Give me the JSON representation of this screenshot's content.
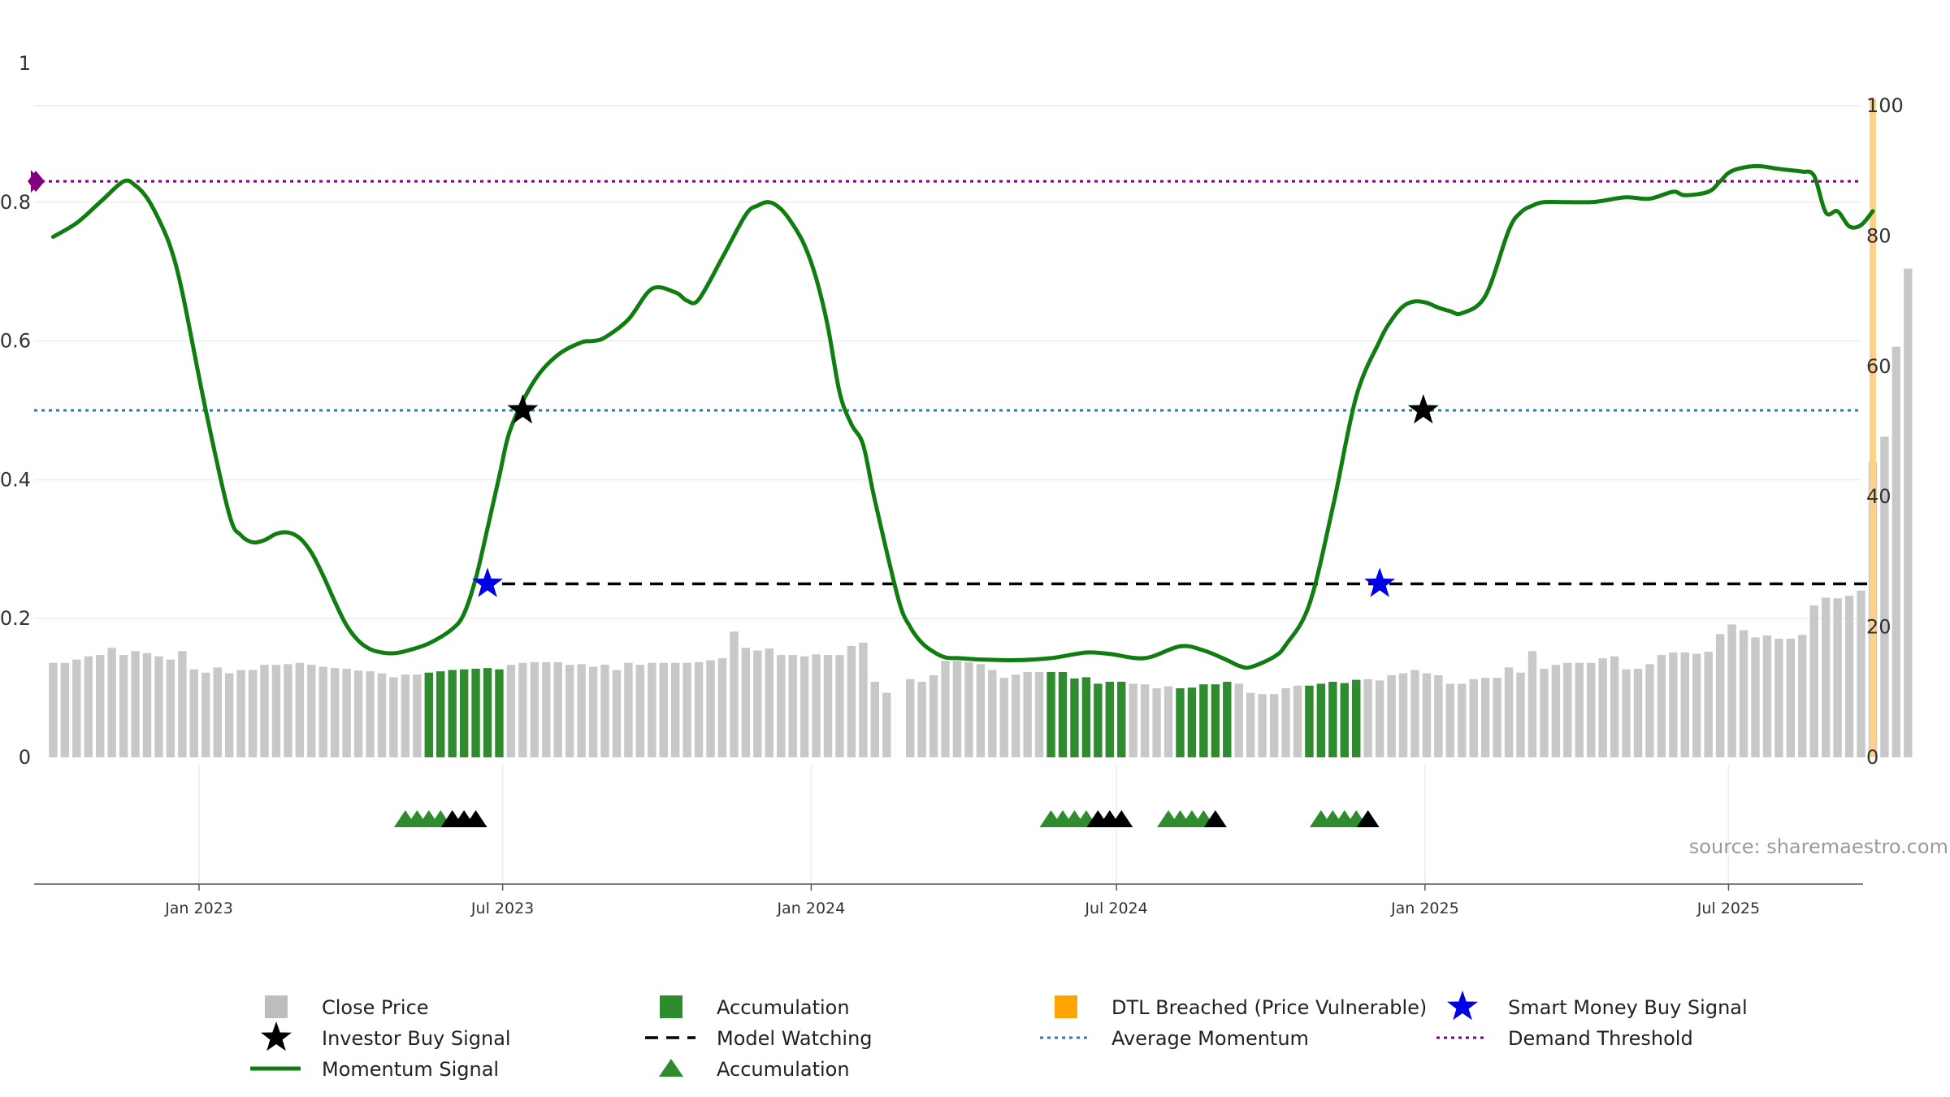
{
  "chart_data": {
    "type": "bar",
    "source": "source: sharemaestro.com",
    "left_axis": {
      "ylim": [
        0,
        1
      ],
      "ticks": [
        0,
        0.2,
        0.4,
        0.6,
        0.8,
        1
      ],
      "tick_labels": [
        "0",
        "0.2",
        "0.4",
        "0.6",
        "0.8",
        "1"
      ]
    },
    "right_axis": {
      "ylim": [
        0,
        100
      ],
      "ticks": [
        0,
        20,
        40,
        60,
        80,
        100
      ],
      "tick_labels": [
        "0",
        "20",
        "40",
        "60",
        "80",
        "100"
      ]
    },
    "x_axis": {
      "tick_dates": [
        "2023-01-01",
        "2023-07-01",
        "2024-01-01",
        "2024-07-01",
        "2025-01-01",
        "2025-07-01"
      ],
      "tick_labels": [
        "Jan 2023",
        "Jul 2023",
        "Jan 2024",
        "Jul 2024",
        "Jan 2025",
        "Jul 2025"
      ]
    },
    "grid": true,
    "colors": {
      "close_price": "#c8c8c8",
      "accumulation": "#2e8b2e",
      "momentum": "#0f7d0f",
      "average_momentum": "#2a7aa8",
      "demand_threshold": "#800080",
      "model_watching": "#000000",
      "smart_money": "#0000e6",
      "investor_buy": "#000000",
      "dtl_breached": "#ffa500"
    },
    "close_price_series": {
      "name": "Close Price",
      "start_date": "2022-10-06",
      "interval_days": 7,
      "values": [
        14.5,
        14.5,
        15,
        15.5,
        15.7,
        16.8,
        15.7,
        16.3,
        16,
        15.5,
        15,
        16.3,
        13.5,
        13,
        13.8,
        12.9,
        13.4,
        13.4,
        14.2,
        14.2,
        14.3,
        14.5,
        14.2,
        13.9,
        13.7,
        13.6,
        13.3,
        13.2,
        12.9,
        12.3,
        12.7,
        12.7,
        13,
        13.2,
        13.4,
        13.5,
        13.6,
        13.7,
        13.5,
        14.2,
        14.5,
        14.6,
        14.6,
        14.6,
        14.2,
        14.3,
        13.9,
        14.2,
        13.4,
        14.5,
        14.2,
        14.5,
        14.5,
        14.5,
        14.5,
        14.6,
        14.9,
        15.2,
        19.3,
        16.8,
        16.4,
        16.7,
        15.7,
        15.7,
        15.5,
        15.8,
        15.7,
        15.7,
        17.1,
        17.6,
        11.6,
        9.9,
        null,
        12,
        11.6,
        12.6,
        14.8,
        14.8,
        14.6,
        14.3,
        13.4,
        12.2,
        12.7,
        13.1,
        13.1,
        13.1,
        13.1,
        12.1,
        12.3,
        11.3,
        11.6,
        11.6,
        11.3,
        11.2,
        10.6,
        10.9,
        10.6,
        10.7,
        11.2,
        11.2,
        11.6,
        11.3,
        9.9,
        9.7,
        9.7,
        10.6,
        11,
        11,
        11.3,
        11.6,
        11.4,
        11.9,
        12,
        11.8,
        12.6,
        12.9,
        13.4,
        12.9,
        12.6,
        11.3,
        11.3,
        12,
        12.2,
        12.2,
        13.8,
        13,
        16.3,
        13.6,
        14.2,
        14.5,
        14.5,
        14.5,
        15.2,
        15.5,
        13.5,
        13.6,
        14.3,
        15.7,
        16.1,
        16.1,
        15.9,
        16.2,
        18.9,
        20.4,
        19.5,
        18.4,
        18.7,
        18.2,
        18.2,
        18.8,
        23.3,
        24.5,
        24.4,
        24.8,
        25.6,
        45.3,
        49.2,
        63,
        75
      ]
    },
    "accumulation_ranges": [
      [
        32,
        38
      ],
      [
        85,
        91
      ],
      [
        96,
        100
      ],
      [
        107,
        111
      ]
    ],
    "momentum_series": {
      "name": "Momentum Signal",
      "dates": [
        "2022-10-06",
        "2022-10-20",
        "2022-11-03",
        "2022-11-17",
        "2022-11-24",
        "2022-12-01",
        "2022-12-08",
        "2022-12-15",
        "2022-12-22",
        "2023-01-05",
        "2023-01-19",
        "2023-01-26",
        "2023-02-02",
        "2023-02-09",
        "2023-02-16",
        "2023-02-23",
        "2023-03-02",
        "2023-03-09",
        "2023-03-16",
        "2023-03-23",
        "2023-03-30",
        "2023-04-06",
        "2023-04-13",
        "2023-04-20",
        "2023-04-27",
        "2023-05-04",
        "2023-05-18",
        "2023-06-01",
        "2023-06-08",
        "2023-06-15",
        "2023-06-22",
        "2023-06-29",
        "2023-07-06",
        "2023-07-20",
        "2023-08-03",
        "2023-08-17",
        "2023-08-24",
        "2023-08-31",
        "2023-09-14",
        "2023-09-28",
        "2023-10-12",
        "2023-10-19",
        "2023-10-26",
        "2023-11-09",
        "2023-11-23",
        "2023-11-30",
        "2023-12-07",
        "2023-12-14",
        "2023-12-21",
        "2023-12-28",
        "2024-01-04",
        "2024-01-11",
        "2024-01-18",
        "2024-01-25",
        "2024-02-01",
        "2024-02-08",
        "2024-02-22",
        "2024-02-29",
        "2024-03-07",
        "2024-03-14",
        "2024-03-21",
        "2024-03-28",
        "2024-04-04",
        "2024-04-11",
        "2024-05-02",
        "2024-05-23",
        "2024-06-13",
        "2024-06-27",
        "2024-07-18",
        "2024-08-08",
        "2024-08-22",
        "2024-09-05",
        "2024-09-12",
        "2024-09-19",
        "2024-10-03",
        "2024-10-10",
        "2024-10-24",
        "2024-11-07",
        "2024-11-21",
        "2024-12-05",
        "2024-12-12",
        "2024-12-19",
        "2024-12-26",
        "2025-01-02",
        "2025-01-09",
        "2025-01-16",
        "2025-01-23",
        "2025-02-06",
        "2025-02-20",
        "2025-02-27",
        "2025-03-06",
        "2025-03-13",
        "2025-03-27",
        "2025-04-10",
        "2025-04-17",
        "2025-05-01",
        "2025-05-15",
        "2025-05-29",
        "2025-06-05",
        "2025-06-19",
        "2025-06-26",
        "2025-07-03",
        "2025-07-17",
        "2025-07-31",
        "2025-08-07",
        "2025-08-14",
        "2025-08-21",
        "2025-08-28",
        "2025-09-04",
        "2025-09-11",
        "2025-09-18",
        "2025-09-25"
      ],
      "values": [
        0.75,
        0.77,
        0.8,
        0.83,
        0.824,
        0.806,
        0.775,
        0.735,
        0.67,
        0.5,
        0.35,
        0.32,
        0.31,
        0.313,
        0.322,
        0.324,
        0.316,
        0.295,
        0.262,
        0.224,
        0.19,
        0.168,
        0.156,
        0.151,
        0.15,
        0.153,
        0.164,
        0.185,
        0.207,
        0.258,
        0.33,
        0.405,
        0.475,
        0.543,
        0.58,
        0.598,
        0.6,
        0.605,
        0.631,
        0.675,
        0.67,
        0.658,
        0.66,
        0.72,
        0.782,
        0.795,
        0.8,
        0.79,
        0.768,
        0.738,
        0.69,
        0.62,
        0.525,
        0.48,
        0.45,
        0.37,
        0.228,
        0.188,
        0.165,
        0.152,
        0.144,
        0.143,
        0.142,
        0.141,
        0.14,
        0.143,
        0.151,
        0.149,
        0.143,
        0.16,
        0.154,
        0.14,
        0.132,
        0.13,
        0.145,
        0.162,
        0.22,
        0.36,
        0.52,
        0.6,
        0.63,
        0.65,
        0.657,
        0.655,
        0.648,
        0.643,
        0.64,
        0.665,
        0.76,
        0.785,
        0.795,
        0.8,
        0.8,
        0.8,
        0.802,
        0.807,
        0.805,
        0.815,
        0.81,
        0.815,
        0.83,
        0.845,
        0.852,
        0.848,
        0.846,
        0.844,
        0.838,
        0.785,
        0.787,
        0.765,
        0.767,
        0.787
      ]
    },
    "average_momentum": {
      "name": "Average Momentum",
      "value": 0.5
    },
    "demand_threshold": {
      "name": "Demand Threshold",
      "value": 0.83
    },
    "model_watching": {
      "name": "Model Watching",
      "value": 0.25,
      "start_date": "2023-06-22",
      "end_date": "2025-09-25"
    },
    "smart_money_signals": [
      {
        "date": "2023-06-22",
        "value": 0.25
      },
      {
        "date": "2024-12-05",
        "value": 0.25
      }
    ],
    "investor_buy_signals": [
      {
        "date": "2023-07-13",
        "value": 0.5
      },
      {
        "date": "2024-12-31",
        "value": 0.5
      }
    ],
    "accumulation_markers": {
      "green": [
        "2023-05-04",
        "2023-05-11",
        "2023-05-18",
        "2023-05-25",
        "2024-05-23",
        "2024-05-30",
        "2024-06-06",
        "2024-06-13",
        "2024-08-01",
        "2024-08-08",
        "2024-08-15",
        "2024-08-22",
        "2024-10-31",
        "2024-11-07",
        "2024-11-14",
        "2024-11-21"
      ],
      "black": [
        "2023-06-01",
        "2023-06-08",
        "2023-06-15",
        "2024-06-20",
        "2024-06-27",
        "2024-07-04",
        "2024-08-29",
        "2024-11-28"
      ]
    },
    "dtl_breached": {
      "name": "DTL Breached (Price Vulnerable)",
      "start_date": "2025-09-25",
      "end_date": "2025-09-25"
    },
    "legend": [
      {
        "key": "close_price",
        "label": "Close Price",
        "symbol": "square-gray"
      },
      {
        "key": "accumulation",
        "label": "Accumulation",
        "symbol": "square-green"
      },
      {
        "key": "dtl",
        "label": "DTL Breached (Price Vulnerable)",
        "symbol": "square-orange"
      },
      {
        "key": "smart_money",
        "label": "Smart Money Buy Signal",
        "symbol": "star-blue"
      },
      {
        "key": "investor_buy",
        "label": "Investor Buy Signal",
        "symbol": "star-black"
      },
      {
        "key": "model_watching",
        "label": "Model Watching",
        "symbol": "dash-black"
      },
      {
        "key": "avg_momentum",
        "label": "Average Momentum",
        "symbol": "dot-blue"
      },
      {
        "key": "demand_threshold",
        "label": "Demand Threshold",
        "symbol": "dot-purple"
      },
      {
        "key": "momentum",
        "label": "Momentum Signal",
        "symbol": "line-green"
      },
      {
        "key": "accumulation_marker",
        "label": "Accumulation",
        "symbol": "triangle-green"
      }
    ]
  }
}
